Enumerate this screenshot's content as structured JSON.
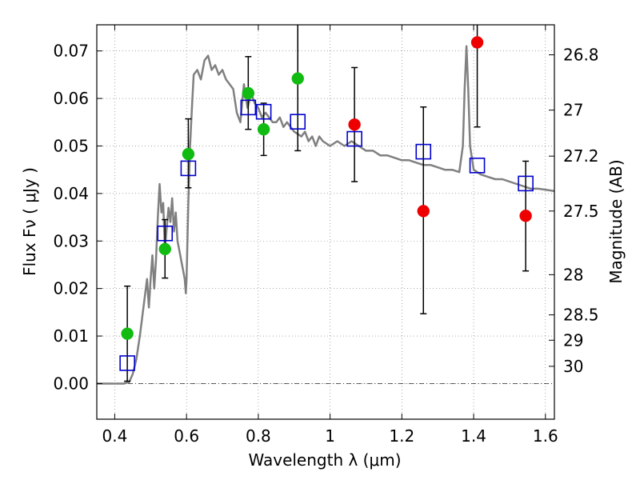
{
  "chart_data": {
    "type": "scatter",
    "xlabel": "Wavelength  λ (μm)",
    "ylabel": "Flux  Fν  ( μJy )",
    "ylabel_right": "Magnitude (AB)",
    "xlim": [
      0.35,
      1.625
    ],
    "ylim": [
      -0.0075,
      0.0755
    ],
    "grid": true,
    "x_ticks": [
      {
        "value": 0.4,
        "label": "0.4"
      },
      {
        "value": 0.6,
        "label": "0.6"
      },
      {
        "value": 0.8,
        "label": "0.8"
      },
      {
        "value": 1.0,
        "label": "1"
      },
      {
        "value": 1.2,
        "label": "1.2"
      },
      {
        "value": 1.4,
        "label": "1.4"
      },
      {
        "value": 1.6,
        "label": "1.6"
      }
    ],
    "y_ticks": [
      {
        "value": 0.0,
        "label": "0.00"
      },
      {
        "value": 0.01,
        "label": "0.01"
      },
      {
        "value": 0.02,
        "label": "0.02"
      },
      {
        "value": 0.03,
        "label": "0.03"
      },
      {
        "value": 0.04,
        "label": "0.04"
      },
      {
        "value": 0.05,
        "label": "0.05"
      },
      {
        "value": 0.06,
        "label": "0.06"
      },
      {
        "value": 0.07,
        "label": "0.07"
      }
    ],
    "right_ticks": [
      {
        "mag": 26.8,
        "label": "26.8"
      },
      {
        "mag": 27.0,
        "label": "27"
      },
      {
        "mag": 27.2,
        "label": "27.2"
      },
      {
        "mag": 27.5,
        "label": "27.5"
      },
      {
        "mag": 28.0,
        "label": "28"
      },
      {
        "mag": 28.5,
        "label": "28.5"
      },
      {
        "mag": 29.0,
        "label": "29"
      },
      {
        "mag": 30.0,
        "label": "30"
      }
    ],
    "colors": {
      "model": "#808080",
      "green": "#11bb11",
      "red": "#ee0000",
      "square": "#0000cc",
      "grid": "#bbbbbb"
    },
    "series": [
      {
        "name": "model spectrum",
        "kind": "line",
        "points": [
          [
            0.35,
            0.0
          ],
          [
            0.425,
            0.0
          ],
          [
            0.44,
            0.0003
          ],
          [
            0.45,
            0.002
          ],
          [
            0.46,
            0.005
          ],
          [
            0.47,
            0.01
          ],
          [
            0.48,
            0.016
          ],
          [
            0.49,
            0.022
          ],
          [
            0.495,
            0.016
          ],
          [
            0.5,
            0.022
          ],
          [
            0.505,
            0.027
          ],
          [
            0.51,
            0.02
          ],
          [
            0.515,
            0.026
          ],
          [
            0.52,
            0.035
          ],
          [
            0.525,
            0.042
          ],
          [
            0.53,
            0.036
          ],
          [
            0.535,
            0.038
          ],
          [
            0.54,
            0.028
          ],
          [
            0.545,
            0.033
          ],
          [
            0.55,
            0.037
          ],
          [
            0.555,
            0.034
          ],
          [
            0.56,
            0.039
          ],
          [
            0.565,
            0.032
          ],
          [
            0.57,
            0.036
          ],
          [
            0.575,
            0.03
          ],
          [
            0.58,
            0.028
          ],
          [
            0.585,
            0.026
          ],
          [
            0.59,
            0.024
          ],
          [
            0.595,
            0.022
          ],
          [
            0.598,
            0.019
          ],
          [
            0.6,
            0.022
          ],
          [
            0.605,
            0.038
          ],
          [
            0.61,
            0.05
          ],
          [
            0.615,
            0.058
          ],
          [
            0.62,
            0.065
          ],
          [
            0.63,
            0.066
          ],
          [
            0.64,
            0.064
          ],
          [
            0.65,
            0.068
          ],
          [
            0.66,
            0.069
          ],
          [
            0.67,
            0.066
          ],
          [
            0.68,
            0.067
          ],
          [
            0.69,
            0.065
          ],
          [
            0.7,
            0.066
          ],
          [
            0.71,
            0.064
          ],
          [
            0.72,
            0.063
          ],
          [
            0.73,
            0.062
          ],
          [
            0.74,
            0.057
          ],
          [
            0.75,
            0.055
          ],
          [
            0.76,
            0.063
          ],
          [
            0.77,
            0.058
          ],
          [
            0.78,
            0.061
          ],
          [
            0.79,
            0.059
          ],
          [
            0.8,
            0.058
          ],
          [
            0.81,
            0.056
          ],
          [
            0.82,
            0.057
          ],
          [
            0.83,
            0.056
          ],
          [
            0.84,
            0.055
          ],
          [
            0.85,
            0.055
          ],
          [
            0.86,
            0.056
          ],
          [
            0.87,
            0.054
          ],
          [
            0.88,
            0.055
          ],
          [
            0.9,
            0.053
          ],
          [
            0.92,
            0.052
          ],
          [
            0.93,
            0.053
          ],
          [
            0.94,
            0.051
          ],
          [
            0.95,
            0.052
          ],
          [
            0.96,
            0.05
          ],
          [
            0.97,
            0.052
          ],
          [
            0.98,
            0.051
          ],
          [
            1.0,
            0.05
          ],
          [
            1.02,
            0.051
          ],
          [
            1.04,
            0.05
          ],
          [
            1.06,
            0.051
          ],
          [
            1.08,
            0.05
          ],
          [
            1.1,
            0.049
          ],
          [
            1.12,
            0.049
          ],
          [
            1.14,
            0.048
          ],
          [
            1.16,
            0.048
          ],
          [
            1.18,
            0.0475
          ],
          [
            1.2,
            0.047
          ],
          [
            1.22,
            0.047
          ],
          [
            1.24,
            0.0465
          ],
          [
            1.26,
            0.046
          ],
          [
            1.28,
            0.046
          ],
          [
            1.3,
            0.0455
          ],
          [
            1.32,
            0.045
          ],
          [
            1.34,
            0.045
          ],
          [
            1.36,
            0.0445
          ],
          [
            1.37,
            0.05
          ],
          [
            1.375,
            0.062
          ],
          [
            1.38,
            0.071
          ],
          [
            1.385,
            0.062
          ],
          [
            1.39,
            0.05
          ],
          [
            1.4,
            0.045
          ],
          [
            1.42,
            0.044
          ],
          [
            1.44,
            0.0435
          ],
          [
            1.46,
            0.043
          ],
          [
            1.48,
            0.043
          ],
          [
            1.5,
            0.0425
          ],
          [
            1.52,
            0.042
          ],
          [
            1.54,
            0.0415
          ],
          [
            1.56,
            0.041
          ],
          [
            1.58,
            0.041
          ],
          [
            1.6,
            0.0408
          ],
          [
            1.625,
            0.0405
          ]
        ]
      },
      {
        "name": "green points",
        "kind": "points",
        "color_key": "green",
        "points": [
          {
            "x": 0.435,
            "y": 0.0105
          },
          {
            "x": 0.54,
            "y": 0.0283
          },
          {
            "x": 0.605,
            "y": 0.0483
          },
          {
            "x": 0.772,
            "y": 0.0611
          },
          {
            "x": 0.815,
            "y": 0.0535
          },
          {
            "x": 0.91,
            "y": 0.0642
          }
        ]
      },
      {
        "name": "red points",
        "kind": "points",
        "color_key": "red",
        "points": [
          {
            "x": 1.068,
            "y": 0.0545
          },
          {
            "x": 1.26,
            "y": 0.0363
          },
          {
            "x": 1.41,
            "y": 0.0718
          },
          {
            "x": 1.545,
            "y": 0.0353
          }
        ]
      },
      {
        "name": "error bars",
        "kind": "errorbars",
        "bars": [
          {
            "x": 0.435,
            "low": 0.0005,
            "high": 0.0205
          },
          {
            "x": 0.54,
            "low": 0.0222,
            "high": 0.0345
          },
          {
            "x": 0.605,
            "low": 0.0412,
            "high": 0.0557
          },
          {
            "x": 0.772,
            "low": 0.0535,
            "high": 0.0688
          },
          {
            "x": 0.815,
            "low": 0.048,
            "high": 0.059
          },
          {
            "x": 0.91,
            "low": 0.049,
            "high": 0.0755
          },
          {
            "x": 1.068,
            "low": 0.0425,
            "high": 0.0665
          },
          {
            "x": 1.26,
            "low": 0.0147,
            "high": 0.0582
          },
          {
            "x": 1.41,
            "low": 0.054,
            "high": 0.0755
          },
          {
            "x": 1.545,
            "low": 0.0237,
            "high": 0.0468
          }
        ]
      },
      {
        "name": "model band fluxes",
        "kind": "squares",
        "color_key": "square",
        "points": [
          {
            "x": 0.435,
            "y": 0.0043
          },
          {
            "x": 0.54,
            "y": 0.0316
          },
          {
            "x": 0.605,
            "y": 0.0453
          },
          {
            "x": 0.772,
            "y": 0.0581
          },
          {
            "x": 0.815,
            "y": 0.0572
          },
          {
            "x": 0.91,
            "y": 0.0551
          },
          {
            "x": 1.068,
            "y": 0.0515
          },
          {
            "x": 1.26,
            "y": 0.0488
          },
          {
            "x": 1.41,
            "y": 0.0459
          },
          {
            "x": 1.545,
            "y": 0.0421
          }
        ]
      }
    ]
  }
}
